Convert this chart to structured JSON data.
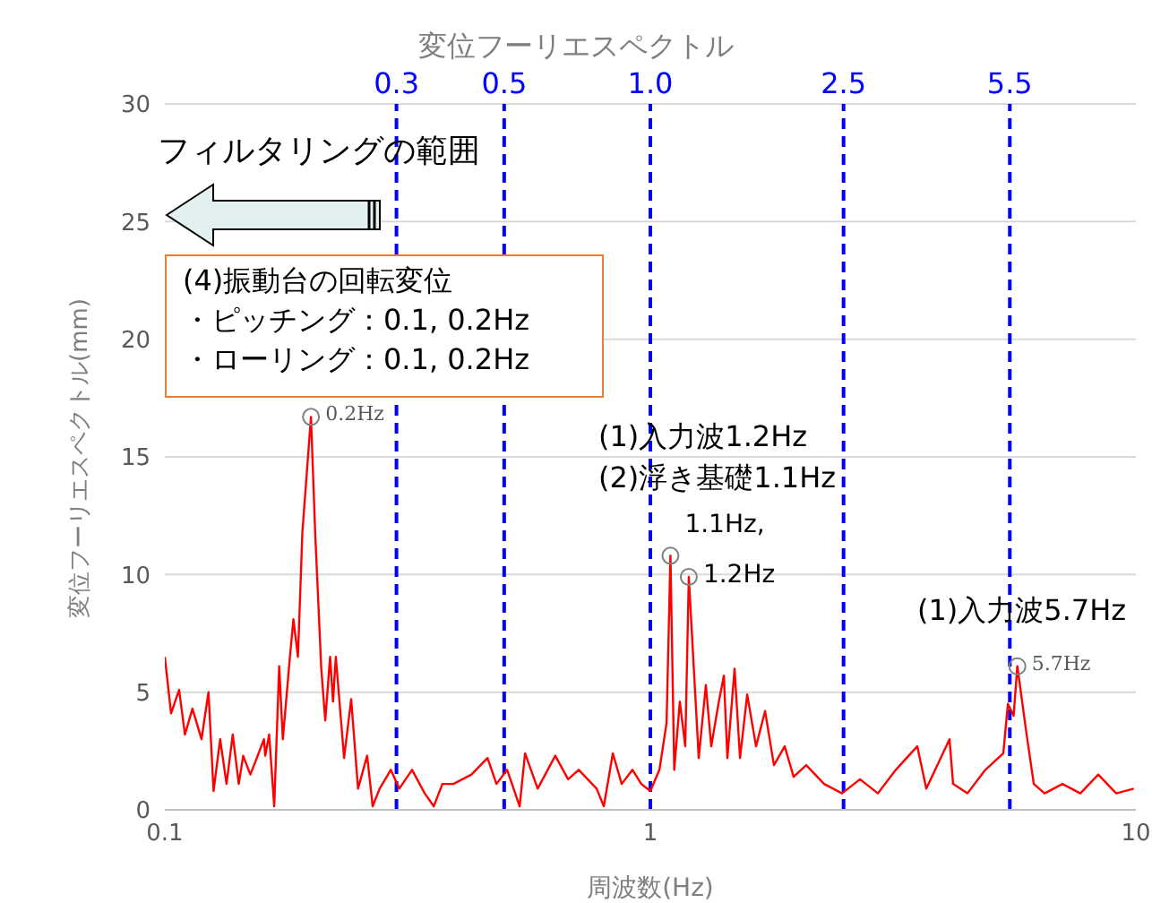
{
  "chart_data": {
    "type": "line",
    "title": "変位フーリエスペクトル",
    "xlabel": "周波数(Hz)",
    "ylabel": "変位フーリエスペクトル(mm)",
    "log": "x",
    "xlim": [
      0.1,
      10
    ],
    "xticks": [
      0.1,
      1,
      10
    ],
    "ylim": [
      0,
      30
    ],
    "yticks": [
      0,
      5,
      10,
      15,
      20,
      25,
      30
    ],
    "grid": "y",
    "series": [
      {
        "color": "#ff0000",
        "marker": "none",
        "line_style": "solid",
        "x": [
          0.1,
          0.103,
          0.107,
          0.11,
          0.114,
          0.119,
          0.123,
          0.126,
          0.13,
          0.134,
          0.138,
          0.142,
          0.145,
          0.15,
          0.154,
          0.16,
          0.161,
          0.164,
          0.168,
          0.172,
          0.175,
          0.181,
          0.184,
          0.188,
          0.192,
          0.2,
          0.204,
          0.21,
          0.214,
          0.219,
          0.222,
          0.225,
          0.234,
          0.242,
          0.25,
          0.261,
          0.268,
          0.277,
          0.292,
          0.304,
          0.323,
          0.343,
          0.358,
          0.373,
          0.393,
          0.428,
          0.462,
          0.482,
          0.507,
          0.538,
          0.552,
          0.586,
          0.637,
          0.677,
          0.712,
          0.775,
          0.802,
          0.837,
          0.873,
          0.919,
          0.958,
          1.0,
          1.044,
          1.08,
          1.1,
          1.12,
          1.15,
          1.18,
          1.2,
          1.258,
          1.301,
          1.335,
          1.381,
          1.417,
          1.441,
          1.491,
          1.53,
          1.583,
          1.651,
          1.723,
          1.797,
          1.891,
          1.973,
          2.094,
          2.28,
          2.482,
          2.703,
          2.942,
          3.203,
          3.546,
          3.701,
          3.861,
          4.132,
          4.203,
          4.499,
          4.898,
          5.333,
          5.45,
          5.6,
          5.7,
          5.956,
          6.163,
          6.485,
          7.06,
          7.685,
          8.366,
          9.11,
          9.9
        ],
        "values": [
          6.5,
          4.1,
          5.1,
          3.2,
          4.3,
          3.0,
          5.0,
          0.8,
          3.0,
          1.1,
          3.2,
          1.1,
          2.3,
          1.5,
          2.1,
          3.0,
          2.3,
          3.2,
          0.15,
          6.1,
          3.0,
          6.5,
          8.1,
          6.5,
          11.8,
          16.7,
          11.8,
          6.0,
          3.8,
          6.5,
          4.6,
          6.5,
          2.2,
          4.7,
          0.9,
          2.3,
          0.15,
          0.9,
          1.7,
          0.9,
          1.7,
          0.7,
          0.15,
          1.1,
          1.1,
          1.5,
          2.2,
          1.1,
          1.7,
          0.15,
          2.4,
          0.9,
          2.3,
          1.3,
          1.7,
          0.9,
          0.15,
          2.4,
          1.1,
          1.7,
          1.1,
          0.8,
          1.7,
          3.7,
          10.8,
          1.7,
          4.6,
          2.7,
          9.9,
          2.2,
          5.3,
          2.7,
          4.5,
          5.7,
          2.2,
          6.0,
          2.2,
          4.9,
          2.7,
          4.2,
          1.9,
          2.7,
          1.4,
          1.9,
          1.1,
          0.7,
          1.3,
          0.7,
          1.7,
          2.7,
          0.9,
          1.7,
          3.0,
          1.1,
          0.7,
          1.7,
          2.4,
          4.5,
          4.0,
          6.1,
          3.2,
          1.1,
          0.7,
          1.1,
          0.7,
          1.5,
          0.7,
          0.9
        ]
      },
      {
        "type": "scatter",
        "color": "#808080",
        "marker": "circle",
        "x": [
          0.2,
          1.1,
          1.2,
          5.7
        ],
        "values": [
          16.7,
          10.8,
          9.9,
          6.1
        ]
      }
    ],
    "ref_lines": [
      {
        "axis": "x",
        "value": 0.3,
        "label": "0.3",
        "color": "#0000ff",
        "line_style": "dashed"
      },
      {
        "axis": "x",
        "value": 0.5,
        "label": "0.5",
        "color": "#0000ff",
        "line_style": "dashed"
      },
      {
        "axis": "x",
        "value": 1,
        "label": "1.0",
        "color": "#0000ff",
        "line_style": "dashed"
      },
      {
        "axis": "x",
        "value": 2.5,
        "label": "2.5",
        "color": "#0000ff",
        "line_style": "dashed"
      },
      {
        "axis": "x",
        "value": 5.5,
        "label": "5.5",
        "color": "#0000ff",
        "line_style": "dashed"
      }
    ],
    "annotations": [
      {
        "text": "0.2Hz",
        "x": 0.2,
        "y": 16.7
      },
      {
        "text": "1.1Hz,",
        "x": 1.1,
        "y": 10.8
      },
      {
        "text": "1.2Hz",
        "x": 1.2,
        "y": 9.9
      },
      {
        "text": "5.7Hz",
        "x": 5.7,
        "y": 6.1
      },
      "フィルタリングの範囲",
      "(4)振動台の回転変位",
      "・ピッチング：0.1, 0.2Hz",
      "・ローリング：0.1, 0.2Hz",
      "(1)入力波1.2Hz",
      "(2)浮き基礎1.1Hz",
      "(1)入力波5.7Hz"
    ]
  }
}
